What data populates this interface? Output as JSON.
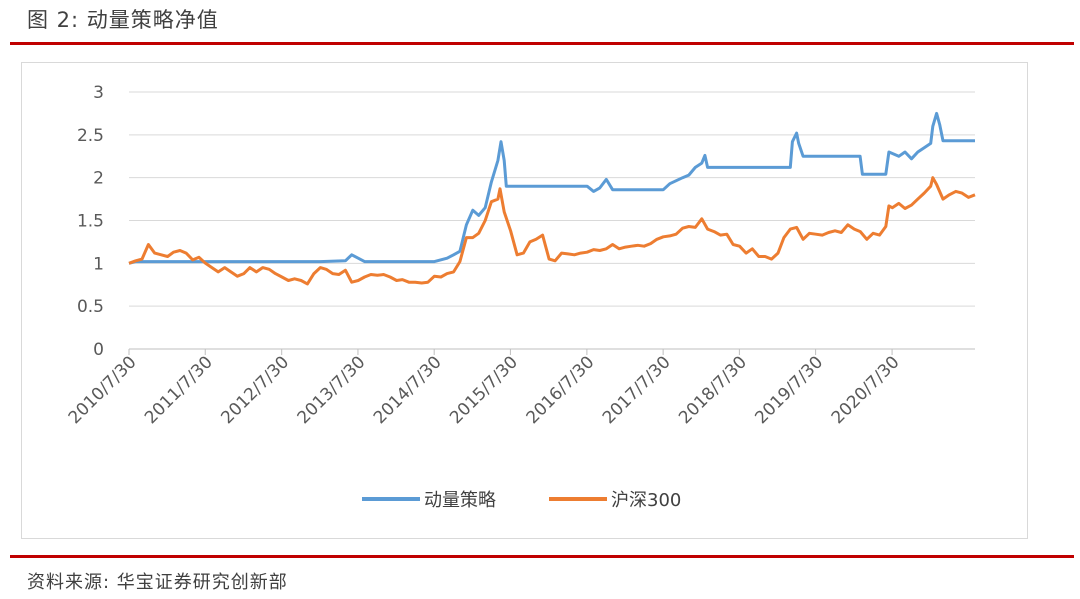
{
  "figure_title": "图 2:  动量策略净值",
  "source_text": "资料来源:  华宝证券研究创新部",
  "chart_data": {
    "type": "line",
    "title": "",
    "xlabel": "",
    "ylabel": "",
    "ylim": [
      0,
      3
    ],
    "yticks": [
      0,
      0.5,
      1,
      1.5,
      2,
      2.5,
      3
    ],
    "ytick_labels": [
      "0",
      "0.5",
      "1",
      "1.5",
      "2",
      "2.5",
      "3"
    ],
    "xticks": [
      "2010/7/30",
      "2011/7/30",
      "2012/7/30",
      "2013/7/30",
      "2014/7/30",
      "2015/7/30",
      "2016/7/30",
      "2017/7/30",
      "2018/7/30",
      "2019/7/30",
      "2020/7/30"
    ],
    "xlim": [
      "2010/7/30",
      "2021/8/31"
    ],
    "grid": "horizontal",
    "legend_position": "bottom",
    "series": [
      {
        "name": "动量策略",
        "color": "#5b9bd5",
        "points": [
          [
            "2010/7/30",
            1.0
          ],
          [
            "2010/8/31",
            1.02
          ],
          [
            "2010/9/30",
            1.02
          ],
          [
            "2010/10/31",
            1.02
          ],
          [
            "2011/12/31",
            1.02
          ],
          [
            "2013/1/31",
            1.02
          ],
          [
            "2013/5/31",
            1.03
          ],
          [
            "2013/6/30",
            1.1
          ],
          [
            "2013/7/31",
            1.06
          ],
          [
            "2013/8/31",
            1.02
          ],
          [
            "2014/7/31",
            1.02
          ],
          [
            "2014/9/30",
            1.06
          ],
          [
            "2014/10/31",
            1.1
          ],
          [
            "2014/11/30",
            1.14
          ],
          [
            "2014/12/31",
            1.45
          ],
          [
            "2015/1/31",
            1.62
          ],
          [
            "2015/2/28",
            1.56
          ],
          [
            "2015/3/31",
            1.65
          ],
          [
            "2015/4/30",
            1.95
          ],
          [
            "2015/5/31",
            2.2
          ],
          [
            "2015/6/15",
            2.42
          ],
          [
            "2015/6/30",
            2.2
          ],
          [
            "2015/7/10",
            1.9
          ],
          [
            "2016/7/31",
            1.9
          ],
          [
            "2016/8/31",
            1.84
          ],
          [
            "2016/9/30",
            1.88
          ],
          [
            "2016/10/31",
            1.98
          ],
          [
            "2016/11/30",
            1.86
          ],
          [
            "2017/7/31",
            1.86
          ],
          [
            "2017/8/31",
            1.93
          ],
          [
            "2017/10/31",
            2.0
          ],
          [
            "2017/11/30",
            2.03
          ],
          [
            "2017/12/31",
            2.12
          ],
          [
            "2018/1/31",
            2.17
          ],
          [
            "2018/2/15",
            2.26
          ],
          [
            "2018/2/28",
            2.12
          ],
          [
            "2019/3/31",
            2.12
          ],
          [
            "2019/4/10",
            2.42
          ],
          [
            "2019/4/30",
            2.52
          ],
          [
            "2019/5/10",
            2.4
          ],
          [
            "2019/5/31",
            2.25
          ],
          [
            "2020/2/28",
            2.25
          ],
          [
            "2020/3/10",
            2.04
          ],
          [
            "2020/6/30",
            2.04
          ],
          [
            "2020/7/15",
            2.3
          ],
          [
            "2020/8/31",
            2.25
          ],
          [
            "2020/9/30",
            2.3
          ],
          [
            "2020/10/31",
            2.22
          ],
          [
            "2020/11/30",
            2.3
          ],
          [
            "2020/12/31",
            2.35
          ],
          [
            "2021/1/31",
            2.4
          ],
          [
            "2021/2/10",
            2.6
          ],
          [
            "2021/2/28",
            2.75
          ],
          [
            "2021/3/15",
            2.62
          ],
          [
            "2021/3/31",
            2.43
          ],
          [
            "2021/8/31",
            2.43
          ]
        ]
      },
      {
        "name": "沪深300",
        "color": "#ed7d31",
        "points": [
          [
            "2010/7/30",
            1.0
          ],
          [
            "2010/8/31",
            1.03
          ],
          [
            "2010/9/30",
            1.05
          ],
          [
            "2010/10/31",
            1.22
          ],
          [
            "2010/11/30",
            1.12
          ],
          [
            "2010/12/31",
            1.1
          ],
          [
            "2011/1/31",
            1.08
          ],
          [
            "2011/2/28",
            1.13
          ],
          [
            "2011/3/31",
            1.15
          ],
          [
            "2011/4/30",
            1.12
          ],
          [
            "2011/5/31",
            1.04
          ],
          [
            "2011/6/30",
            1.07
          ],
          [
            "2011/7/31",
            1.0
          ],
          [
            "2011/8/31",
            0.95
          ],
          [
            "2011/9/30",
            0.9
          ],
          [
            "2011/10/31",
            0.95
          ],
          [
            "2011/11/30",
            0.9
          ],
          [
            "2011/12/31",
            0.85
          ],
          [
            "2012/1/31",
            0.88
          ],
          [
            "2012/2/29",
            0.95
          ],
          [
            "2012/3/31",
            0.9
          ],
          [
            "2012/4/30",
            0.95
          ],
          [
            "2012/5/31",
            0.93
          ],
          [
            "2012/6/30",
            0.88
          ],
          [
            "2012/7/31",
            0.84
          ],
          [
            "2012/8/31",
            0.8
          ],
          [
            "2012/9/30",
            0.82
          ],
          [
            "2012/10/31",
            0.8
          ],
          [
            "2012/11/30",
            0.76
          ],
          [
            "2012/12/31",
            0.88
          ],
          [
            "2013/1/31",
            0.95
          ],
          [
            "2013/2/28",
            0.93
          ],
          [
            "2013/3/31",
            0.88
          ],
          [
            "2013/4/30",
            0.87
          ],
          [
            "2013/5/31",
            0.92
          ],
          [
            "2013/6/30",
            0.78
          ],
          [
            "2013/7/31",
            0.8
          ],
          [
            "2013/8/31",
            0.84
          ],
          [
            "2013/9/30",
            0.87
          ],
          [
            "2013/10/31",
            0.86
          ],
          [
            "2013/11/30",
            0.87
          ],
          [
            "2013/12/31",
            0.84
          ],
          [
            "2014/1/31",
            0.8
          ],
          [
            "2014/2/28",
            0.81
          ],
          [
            "2014/3/31",
            0.78
          ],
          [
            "2014/4/30",
            0.78
          ],
          [
            "2014/5/31",
            0.77
          ],
          [
            "2014/6/30",
            0.78
          ],
          [
            "2014/7/31",
            0.85
          ],
          [
            "2014/8/31",
            0.84
          ],
          [
            "2014/9/30",
            0.88
          ],
          [
            "2014/10/31",
            0.9
          ],
          [
            "2014/11/30",
            1.02
          ],
          [
            "2014/12/31",
            1.3
          ],
          [
            "2015/1/31",
            1.3
          ],
          [
            "2015/2/28",
            1.35
          ],
          [
            "2015/3/31",
            1.5
          ],
          [
            "2015/4/30",
            1.72
          ],
          [
            "2015/5/31",
            1.75
          ],
          [
            "2015/6/10",
            1.87
          ],
          [
            "2015/6/30",
            1.6
          ],
          [
            "2015/7/31",
            1.38
          ],
          [
            "2015/8/31",
            1.1
          ],
          [
            "2015/9/30",
            1.12
          ],
          [
            "2015/10/31",
            1.25
          ],
          [
            "2015/11/30",
            1.28
          ],
          [
            "2015/12/31",
            1.33
          ],
          [
            "2016/1/31",
            1.05
          ],
          [
            "2016/2/29",
            1.03
          ],
          [
            "2016/3/31",
            1.12
          ],
          [
            "2016/4/30",
            1.11
          ],
          [
            "2016/5/31",
            1.1
          ],
          [
            "2016/6/30",
            1.12
          ],
          [
            "2016/7/31",
            1.13
          ],
          [
            "2016/8/31",
            1.16
          ],
          [
            "2016/9/30",
            1.15
          ],
          [
            "2016/10/31",
            1.17
          ],
          [
            "2016/11/30",
            1.22
          ],
          [
            "2016/12/31",
            1.17
          ],
          [
            "2017/1/31",
            1.19
          ],
          [
            "2017/2/28",
            1.2
          ],
          [
            "2017/3/31",
            1.21
          ],
          [
            "2017/4/30",
            1.2
          ],
          [
            "2017/5/31",
            1.23
          ],
          [
            "2017/6/30",
            1.28
          ],
          [
            "2017/7/31",
            1.31
          ],
          [
            "2017/8/31",
            1.32
          ],
          [
            "2017/9/30",
            1.34
          ],
          [
            "2017/10/31",
            1.41
          ],
          [
            "2017/11/30",
            1.43
          ],
          [
            "2017/12/31",
            1.42
          ],
          [
            "2018/1/31",
            1.52
          ],
          [
            "2018/2/28",
            1.4
          ],
          [
            "2018/3/31",
            1.37
          ],
          [
            "2018/4/30",
            1.33
          ],
          [
            "2018/5/31",
            1.34
          ],
          [
            "2018/6/30",
            1.22
          ],
          [
            "2018/7/31",
            1.2
          ],
          [
            "2018/8/31",
            1.12
          ],
          [
            "2018/9/30",
            1.17
          ],
          [
            "2018/10/31",
            1.08
          ],
          [
            "2018/11/30",
            1.08
          ],
          [
            "2018/12/31",
            1.05
          ],
          [
            "2019/1/31",
            1.12
          ],
          [
            "2019/2/28",
            1.3
          ],
          [
            "2019/3/31",
            1.4
          ],
          [
            "2019/4/30",
            1.42
          ],
          [
            "2019/5/31",
            1.28
          ],
          [
            "2019/6/30",
            1.35
          ],
          [
            "2019/7/31",
            1.34
          ],
          [
            "2019/8/31",
            1.33
          ],
          [
            "2019/9/30",
            1.36
          ],
          [
            "2019/10/31",
            1.38
          ],
          [
            "2019/11/30",
            1.36
          ],
          [
            "2019/12/31",
            1.45
          ],
          [
            "2020/1/31",
            1.4
          ],
          [
            "2020/2/29",
            1.37
          ],
          [
            "2020/3/31",
            1.28
          ],
          [
            "2020/4/30",
            1.35
          ],
          [
            "2020/5/31",
            1.33
          ],
          [
            "2020/6/30",
            1.43
          ],
          [
            "2020/7/15",
            1.67
          ],
          [
            "2020/7/31",
            1.65
          ],
          [
            "2020/8/31",
            1.7
          ],
          [
            "2020/9/30",
            1.64
          ],
          [
            "2020/10/31",
            1.68
          ],
          [
            "2020/11/30",
            1.75
          ],
          [
            "2020/12/31",
            1.82
          ],
          [
            "2021/1/31",
            1.9
          ],
          [
            "2021/2/10",
            2.0
          ],
          [
            "2021/2/28",
            1.92
          ],
          [
            "2021/3/31",
            1.75
          ],
          [
            "2021/4/30",
            1.8
          ],
          [
            "2021/5/31",
            1.84
          ],
          [
            "2021/6/30",
            1.82
          ],
          [
            "2021/7/31",
            1.77
          ],
          [
            "2021/8/31",
            1.8
          ]
        ]
      }
    ]
  }
}
